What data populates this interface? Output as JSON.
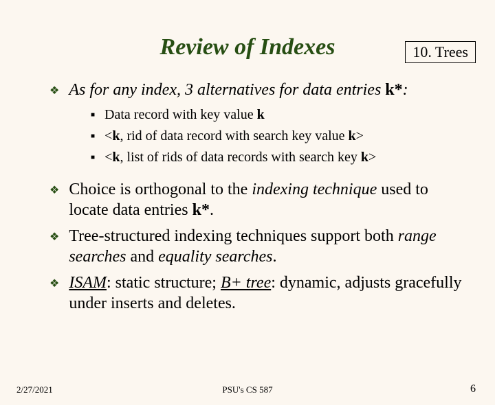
{
  "header": {
    "chapter": "10. Trees"
  },
  "title": "Review of Indexes",
  "mains": [
    {
      "runs": [
        {
          "t": "As for any index, 3 alternatives for data entries ",
          "italic": true
        },
        {
          "t": "k*",
          "bold": true
        },
        {
          "t": ":",
          "italic": true
        }
      ],
      "subs": [
        [
          {
            "t": "Data record with key value "
          },
          {
            "t": "k",
            "bold": true
          }
        ],
        [
          {
            "t": "<"
          },
          {
            "t": "k",
            "bold": true
          },
          {
            "t": ", rid of data record with search key value "
          },
          {
            "t": "k",
            "bold": true
          },
          {
            "t": ">"
          }
        ],
        [
          {
            "t": "<"
          },
          {
            "t": "k",
            "bold": true
          },
          {
            "t": ", list of rids of data records with search key "
          },
          {
            "t": "k",
            "bold": true
          },
          {
            "t": ">"
          }
        ]
      ]
    },
    {
      "runs": [
        {
          "t": "Choice is orthogonal to the "
        },
        {
          "t": "indexing technique",
          "italic": true
        },
        {
          "t": " used to locate data entries "
        },
        {
          "t": "k*",
          "bold": true
        },
        {
          "t": "."
        }
      ]
    },
    {
      "runs": [
        {
          "t": "Tree-structured indexing techniques support both "
        },
        {
          "t": "range searches",
          "italic": true
        },
        {
          "t": " and "
        },
        {
          "t": "equality searches",
          "italic": true
        },
        {
          "t": "."
        }
      ]
    },
    {
      "runs": [
        {
          "t": "ISAM",
          "italic": true,
          "underline": true
        },
        {
          "t": ":  static structure;  "
        },
        {
          "t": "B+ tree",
          "italic": true,
          "underline": true
        },
        {
          "t": ":  dynamic, adjusts gracefully under inserts and deletes."
        }
      ]
    }
  ],
  "footer": {
    "date": "2/27/2021",
    "course": "PSU's CS 587",
    "page": "6"
  },
  "colors": {
    "background": "#fcf7f0",
    "accent": "#274e13"
  }
}
